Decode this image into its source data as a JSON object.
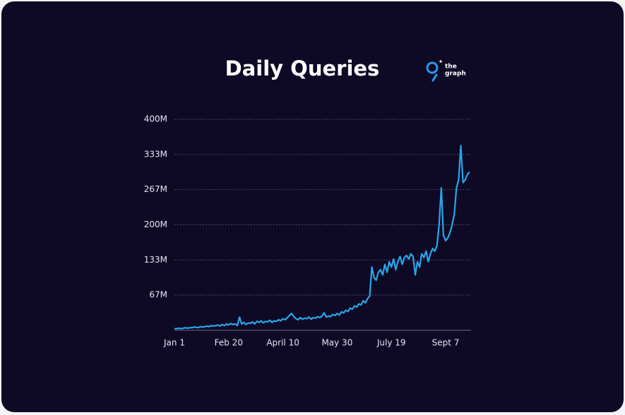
{
  "chart_data": {
    "type": "line",
    "title": "Daily Queries",
    "logo": [
      "the",
      "graph"
    ],
    "color": "#2aa6e8",
    "grid": true,
    "ylim": [
      0,
      400
    ],
    "yticks": [
      {
        "value": 66.67,
        "label": "67M"
      },
      {
        "value": 133.33,
        "label": "133M"
      },
      {
        "value": 200,
        "label": "200M"
      },
      {
        "value": 266.67,
        "label": "267M"
      },
      {
        "value": 333.33,
        "label": "333M"
      },
      {
        "value": 400,
        "label": "400M"
      }
    ],
    "categories": [
      "Jan 1",
      null,
      null,
      null,
      null,
      null,
      null,
      null,
      null,
      null,
      null,
      null,
      null,
      null,
      null,
      null,
      null,
      null,
      null,
      null,
      null,
      null,
      null,
      null,
      null,
      "Feb 20",
      null,
      null,
      null,
      null,
      null,
      null,
      null,
      null,
      null,
      null,
      null,
      null,
      null,
      null,
      null,
      null,
      null,
      null,
      null,
      null,
      null,
      null,
      null,
      null,
      "April 10",
      null,
      null,
      null,
      null,
      null,
      null,
      null,
      null,
      null,
      null,
      null,
      null,
      null,
      null,
      null,
      null,
      null,
      null,
      null,
      null,
      null,
      null,
      null,
      null,
      "May 30",
      null,
      null,
      null,
      null,
      null,
      null,
      null,
      null,
      null,
      null,
      null,
      null,
      null,
      null,
      null,
      null,
      null,
      null,
      null,
      null,
      null,
      null,
      null,
      null,
      "July 19",
      null,
      null,
      null,
      null,
      null,
      null,
      null,
      null,
      null,
      null,
      null,
      null,
      null,
      null,
      null,
      null,
      null,
      null,
      null,
      null,
      null,
      null,
      null,
      null,
      "Sept 7",
      null,
      null,
      null,
      null,
      null,
      null,
      null,
      null,
      null,
      null,
      null
    ],
    "values": [
      3,
      3,
      4,
      3,
      4,
      5,
      4,
      5,
      5,
      6,
      6,
      5,
      7,
      6,
      7,
      8,
      7,
      9,
      8,
      9,
      10,
      8,
      11,
      9,
      12,
      10,
      13,
      11,
      12,
      9,
      25,
      12,
      15,
      11,
      14,
      13,
      16,
      12,
      17,
      15,
      18,
      14,
      17,
      16,
      19,
      15,
      18,
      17,
      20,
      18,
      22,
      20,
      24,
      28,
      32,
      26,
      22,
      20,
      24,
      21,
      23,
      22,
      25,
      21,
      24,
      23,
      26,
      24,
      27,
      33,
      25,
      27,
      26,
      30,
      28,
      32,
      29,
      35,
      33,
      38,
      36,
      42,
      40,
      46,
      44,
      50,
      48,
      56,
      52,
      60,
      65,
      120,
      100,
      95,
      110,
      115,
      105,
      125,
      110,
      130,
      120,
      135,
      115,
      130,
      140,
      125,
      138,
      142,
      135,
      145,
      140,
      105,
      130,
      120,
      145,
      138,
      150,
      130,
      145,
      155,
      150,
      160,
      200,
      270,
      180,
      170,
      175,
      185,
      200,
      220,
      270,
      285,
      350,
      280,
      285,
      295,
      300
    ]
  }
}
